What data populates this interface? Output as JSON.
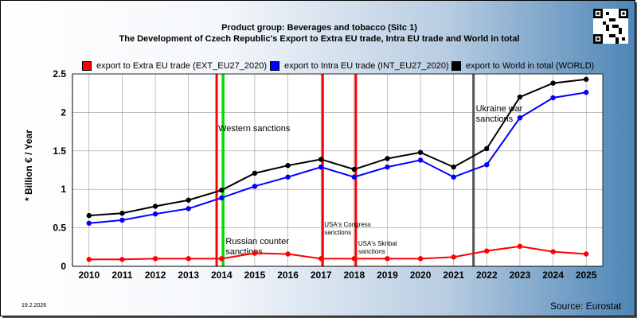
{
  "header": {
    "product_group": "Product group: Beverages and tobacco (Sitc 1)",
    "title": "The Development of Czech Republic's Export to Extra EU trade, Intra EU trade and World in total"
  },
  "footer": {
    "date": "19.2.2026",
    "source": "Source: Eurostat"
  },
  "chart_data": {
    "type": "line",
    "ylabel": "* Billion € / Year",
    "ylim": [
      0,
      2.5
    ],
    "yticks": [
      "0",
      "0.5",
      "1",
      "1.5",
      "2",
      "2.5"
    ],
    "x": [
      "2010",
      "2011",
      "2012",
      "2013",
      "2014",
      "2015",
      "2016",
      "2017",
      "2018",
      "2019",
      "2020",
      "2021",
      "2022",
      "2023",
      "2024",
      "2025"
    ],
    "grid": true,
    "legend_position": "top",
    "series": [
      {
        "name": "export to Extra EU trade (EXT_EU27_2020)",
        "color": "#ff0000",
        "values": [
          0.09,
          0.09,
          0.1,
          0.1,
          0.1,
          0.17,
          0.16,
          0.1,
          0.1,
          0.1,
          0.1,
          0.12,
          0.2,
          0.26,
          0.19,
          0.16
        ]
      },
      {
        "name": "export to Intra EU trade (INT_EU27_2020)",
        "color": "#0000ff",
        "values": [
          0.56,
          0.6,
          0.68,
          0.75,
          0.89,
          1.04,
          1.16,
          1.29,
          1.16,
          1.29,
          1.38,
          1.16,
          1.32,
          1.93,
          2.19,
          2.26
        ]
      },
      {
        "name": "export to World in total (WORLD)",
        "color": "#000000",
        "values": [
          0.66,
          0.69,
          0.78,
          0.86,
          0.99,
          1.21,
          1.31,
          1.39,
          1.26,
          1.4,
          1.48,
          1.29,
          1.53,
          2.2,
          2.38,
          2.43
        ]
      }
    ],
    "events": [
      {
        "x": 2013.85,
        "color": "#ff0000",
        "label": ""
      },
      {
        "x": 2014.05,
        "color": "#00dd00",
        "label": "Western sanctions"
      },
      {
        "x": 2014.05,
        "color": "#00dd00",
        "label": "Russian counter sanctions"
      },
      {
        "x": 2017.05,
        "color": "#ff0000",
        "label": "USA's Congress sanctions"
      },
      {
        "x": 2018.05,
        "color": "#ff0000",
        "label": "USA's Skribal sanctions"
      },
      {
        "x": 2021.6,
        "color": "#555555",
        "label": "Ukraine war sanctions"
      }
    ]
  }
}
